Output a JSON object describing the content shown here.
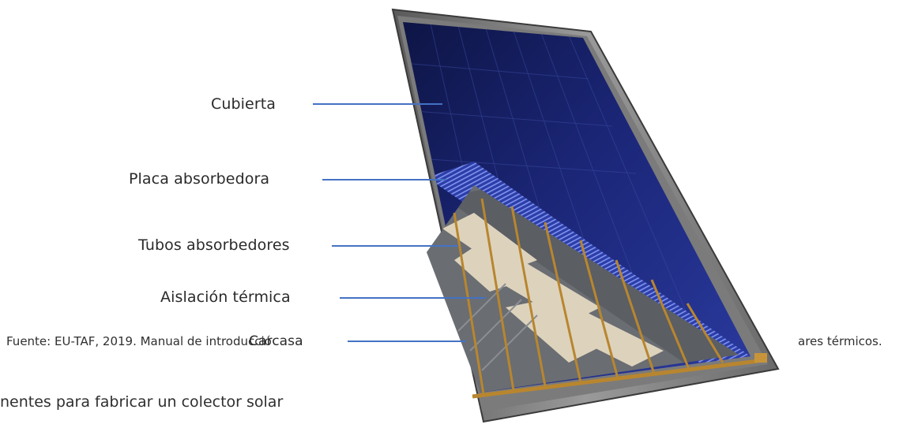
{
  "labels": {
    "cover": "Cubierta",
    "absorber_plate": "Placa absorbedora",
    "absorber_tubes": "Tubos absorbedores",
    "insulation": "Aislación térmica",
    "casing": "Carcasa"
  },
  "source_left": "Fuente: EU-TAF, 2019. Manual de introducció",
  "source_right": "ares térmicos.",
  "caption_fragment": "nentes para fabricar un colector solar",
  "colors": {
    "leader_line": "#4472c4",
    "glass": "#1f2a78",
    "frame": "#6e6e6e",
    "copper": "#b8862f",
    "insulation": "#ddd3bd"
  }
}
